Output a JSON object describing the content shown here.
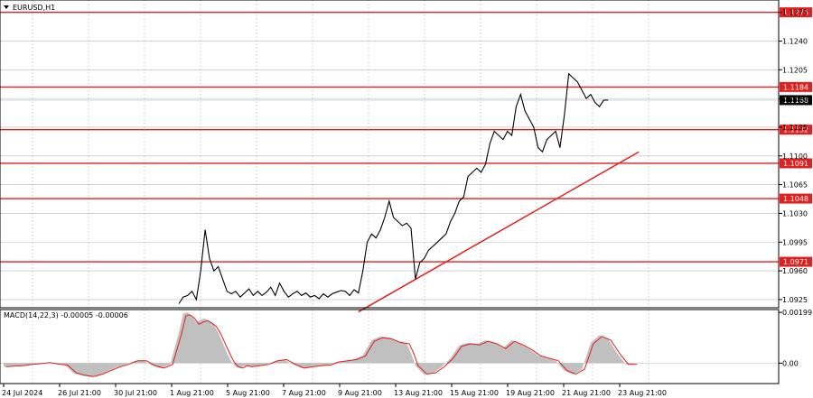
{
  "chart_data": [
    {
      "type": "line",
      "title": "EURUSD,H1",
      "y_ticks": [
        1.0925,
        1.096,
        1.0995,
        1.103,
        1.1065,
        1.11,
        1.1135,
        1.117,
        1.1205,
        1.124,
        1.1275
      ],
      "ylim": [
        1.0915,
        1.129
      ],
      "x_ticks": [
        "24 Jul 2024",
        "26 Jul 21:00",
        "30 Jul 21:00",
        "1 Aug 21:00",
        "5 Aug 21:00",
        "7 Aug 21:00",
        "9 Aug 21:00",
        "13 Aug 21:00",
        "15 Aug 21:00",
        "19 Aug 21:00",
        "21 Aug 21:00",
        "23 Aug 21:00"
      ],
      "current_price": {
        "label": "1.1168",
        "value": 1.1168
      },
      "levels": [
        {
          "label": "1.1275",
          "value": 1.1275
        },
        {
          "label": "1.1184",
          "value": 1.1184
        },
        {
          "label": "1.1132",
          "value": 1.1132
        },
        {
          "label": "1.1091",
          "value": 1.1091
        },
        {
          "label": "1.1048",
          "value": 1.1048
        },
        {
          "label": "1.0971",
          "value": 1.0971
        }
      ],
      "trendline": {
        "start": {
          "slot": 81,
          "value": 1.091
        },
        "end": {
          "slot": 145,
          "value": 1.1105
        }
      },
      "price_path": [
        [
          40,
          1.092
        ],
        [
          41,
          1.0928
        ],
        [
          42,
          1.093
        ],
        [
          43,
          1.0935
        ],
        [
          44,
          1.0925
        ],
        [
          45,
          1.096
        ],
        [
          46,
          1.101
        ],
        [
          47,
          1.0975
        ],
        [
          48,
          1.096
        ],
        [
          49,
          1.0965
        ],
        [
          50,
          1.095
        ],
        [
          51,
          1.0935
        ],
        [
          52,
          1.0932
        ],
        [
          53,
          1.0935
        ],
        [
          54,
          1.0928
        ],
        [
          55,
          1.0933
        ],
        [
          56,
          1.0938
        ],
        [
          57,
          1.093
        ],
        [
          58,
          1.0935
        ],
        [
          59,
          1.093
        ],
        [
          60,
          1.0934
        ],
        [
          61,
          1.094
        ],
        [
          62,
          1.093
        ],
        [
          63,
          1.0945
        ],
        [
          64,
          1.0935
        ],
        [
          65,
          1.0928
        ],
        [
          66,
          1.0932
        ],
        [
          67,
          1.0935
        ],
        [
          68,
          1.093
        ],
        [
          69,
          1.0933
        ],
        [
          70,
          1.0928
        ],
        [
          71,
          1.093
        ],
        [
          72,
          1.0926
        ],
        [
          73,
          1.0932
        ],
        [
          74,
          1.0928
        ],
        [
          75,
          1.0932
        ],
        [
          76,
          1.0934
        ],
        [
          77,
          1.0936
        ],
        [
          78,
          1.0935
        ],
        [
          79,
          1.093
        ],
        [
          80,
          1.0937
        ],
        [
          81,
          1.0933
        ],
        [
          82,
          1.096
        ],
        [
          83,
          1.0995
        ],
        [
          84,
          1.1005
        ],
        [
          85,
          1.1
        ],
        [
          86,
          1.101
        ],
        [
          87,
          1.1025
        ],
        [
          88,
          1.1045
        ],
        [
          89,
          1.1025
        ],
        [
          90,
          1.102
        ],
        [
          91,
          1.1015
        ],
        [
          92,
          1.1018
        ],
        [
          93,
          1.1012
        ],
        [
          94,
          1.095
        ],
        [
          95,
          1.097
        ],
        [
          96,
          1.0975
        ],
        [
          97,
          1.0985
        ],
        [
          98,
          1.099
        ],
        [
          99,
          1.0995
        ],
        [
          100,
          1.1
        ],
        [
          101,
          1.1005
        ],
        [
          102,
          1.102
        ],
        [
          103,
          1.103
        ],
        [
          104,
          1.1045
        ],
        [
          105,
          1.105
        ],
        [
          106,
          1.1075
        ],
        [
          107,
          1.108
        ],
        [
          108,
          1.1085
        ],
        [
          109,
          1.108
        ],
        [
          110,
          1.109
        ],
        [
          111,
          1.1115
        ],
        [
          112,
          1.113
        ],
        [
          113,
          1.1125
        ],
        [
          114,
          1.112
        ],
        [
          115,
          1.113
        ],
        [
          116,
          1.1125
        ],
        [
          117,
          1.116
        ],
        [
          118,
          1.1175
        ],
        [
          119,
          1.1155
        ],
        [
          120,
          1.1145
        ],
        [
          121,
          1.1135
        ],
        [
          122,
          1.111
        ],
        [
          123,
          1.1105
        ],
        [
          124,
          1.112
        ],
        [
          125,
          1.1125
        ],
        [
          126,
          1.113
        ],
        [
          127,
          1.111
        ],
        [
          128,
          1.115
        ],
        [
          129,
          1.12
        ],
        [
          130,
          1.1195
        ],
        [
          131,
          1.119
        ],
        [
          132,
          1.118
        ],
        [
          133,
          1.117
        ],
        [
          134,
          1.1175
        ],
        [
          135,
          1.1165
        ],
        [
          136,
          1.116
        ],
        [
          137,
          1.1168
        ],
        [
          138,
          1.1168
        ]
      ]
    },
    {
      "type": "area",
      "title": "MACD(14,22,3) -0.00005 -0.00006",
      "y_ticks": [
        0.00199,
        0.0
      ],
      "ylim": [
        -0.0008,
        0.0021
      ],
      "histogram": [
        [
          0,
          -0.00015
        ],
        [
          2,
          -0.00012
        ],
        [
          4,
          -0.0001
        ],
        [
          6,
          -5e-05
        ],
        [
          8,
          -2e-05
        ],
        [
          10,
          2e-05
        ],
        [
          12,
          -4e-05
        ],
        [
          14,
          -8e-05
        ],
        [
          16,
          -0.0004
        ],
        [
          18,
          -0.0005
        ],
        [
          20,
          -0.00055
        ],
        [
          22,
          -0.00045
        ],
        [
          24,
          -0.0003
        ],
        [
          26,
          -0.00015
        ],
        [
          28,
          -5e-05
        ],
        [
          30,
          0.0001
        ],
        [
          32,
          0.0001
        ],
        [
          34,
          -0.0001
        ],
        [
          36,
          -0.0002
        ],
        [
          38,
          -5e-05
        ],
        [
          40,
          0.0012
        ],
        [
          41,
          0.00195
        ],
        [
          42,
          0.00199
        ],
        [
          43,
          0.00185
        ],
        [
          44,
          0.0016
        ],
        [
          45,
          0.0017
        ],
        [
          46,
          0.00175
        ],
        [
          47,
          0.00165
        ],
        [
          48,
          0.0015
        ],
        [
          49,
          0.0012
        ],
        [
          50,
          0.0008
        ],
        [
          51,
          0.0004
        ],
        [
          52,
          5e-05
        ],
        [
          53,
          -0.00015
        ],
        [
          54,
          -0.0002
        ],
        [
          55,
          -0.0001
        ],
        [
          56,
          -0.00015
        ],
        [
          58,
          -0.0001
        ],
        [
          60,
          -5e-05
        ],
        [
          62,
          0.0001
        ],
        [
          64,
          0.00015
        ],
        [
          66,
          -5e-05
        ],
        [
          68,
          -0.0002
        ],
        [
          70,
          -0.00015
        ],
        [
          72,
          -0.0001
        ],
        [
          74,
          -8e-05
        ],
        [
          76,
          5e-05
        ],
        [
          78,
          0.0001
        ],
        [
          80,
          0.00015
        ],
        [
          82,
          0.0003
        ],
        [
          84,
          0.0009
        ],
        [
          86,
          0.00105
        ],
        [
          88,
          0.001
        ],
        [
          90,
          0.00085
        ],
        [
          92,
          0.0008
        ],
        [
          93,
          0.0004
        ],
        [
          94,
          -0.0001
        ],
        [
          96,
          -0.00045
        ],
        [
          98,
          -0.0004
        ],
        [
          100,
          -0.00015
        ],
        [
          102,
          0.0002
        ],
        [
          104,
          0.0007
        ],
        [
          106,
          0.0008
        ],
        [
          108,
          0.00075
        ],
        [
          110,
          0.0009
        ],
        [
          112,
          0.0008
        ],
        [
          114,
          0.0006
        ],
        [
          116,
          0.0009
        ],
        [
          118,
          0.00075
        ],
        [
          120,
          0.00055
        ],
        [
          122,
          0.0003
        ],
        [
          124,
          0.0002
        ],
        [
          126,
          0.0001
        ],
        [
          128,
          -0.0003
        ],
        [
          130,
          -0.00045
        ],
        [
          132,
          -0.00025
        ],
        [
          134,
          0.0008
        ],
        [
          136,
          0.0011
        ],
        [
          138,
          0.00095
        ],
        [
          140,
          0.0004
        ],
        [
          142,
          -5e-05
        ],
        [
          144,
          -5e-05
        ]
      ]
    }
  ],
  "colors": {
    "level_line": "#e41f1f",
    "price_line": "#000000",
    "grid": "#b8b8b8",
    "macd_fill": "#c0c0c0",
    "macd_signal": "#e41f1f",
    "price_tag_bg": "#000000"
  }
}
